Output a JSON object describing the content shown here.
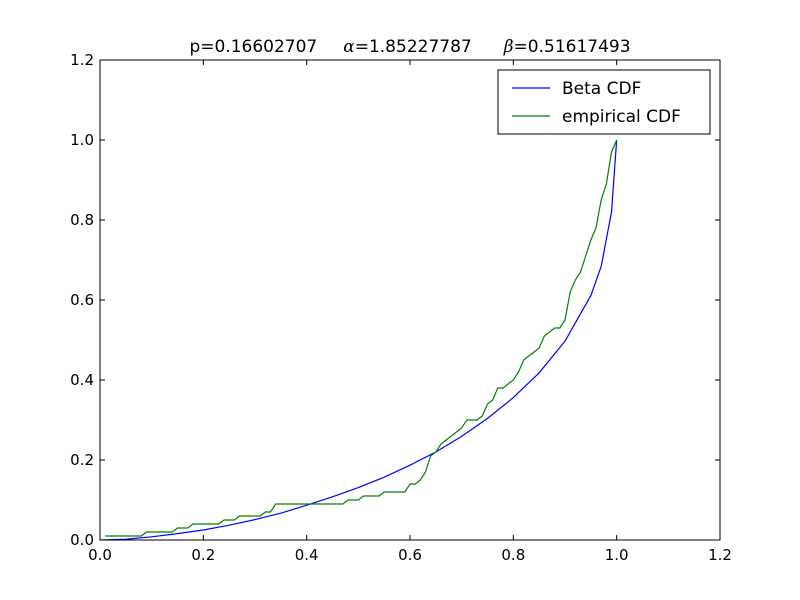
{
  "chart_data": {
    "type": "line",
    "title": {
      "p_label": "p=0.16602707",
      "alpha_symbol": "α",
      "alpha_value": "=1.85227787",
      "beta_symbol": "β",
      "beta_value": "=0.51617493"
    },
    "xlabel": "",
    "ylabel": "",
    "xlim": [
      0.0,
      1.2
    ],
    "ylim": [
      0.0,
      1.2
    ],
    "x_ticks": [
      0.0,
      0.2,
      0.4,
      0.6,
      0.8,
      1.0,
      1.2
    ],
    "x_tick_labels": [
      "0.0",
      "0.2",
      "0.4",
      "0.6",
      "0.8",
      "1.0",
      "1.2"
    ],
    "y_ticks": [
      0.0,
      0.2,
      0.4,
      0.6,
      0.8,
      1.0,
      1.2
    ],
    "y_tick_labels": [
      "0.0",
      "0.2",
      "0.4",
      "0.6",
      "0.8",
      "1.0",
      "1.2"
    ],
    "grid": false,
    "legend_position": "top-right",
    "series": [
      {
        "name": "Beta CDF",
        "color": "#0000ff",
        "x": [
          0.0,
          0.05,
          0.1,
          0.15,
          0.2,
          0.25,
          0.3,
          0.35,
          0.4,
          0.45,
          0.5,
          0.55,
          0.6,
          0.65,
          0.7,
          0.75,
          0.8,
          0.85,
          0.9,
          0.95,
          0.97,
          0.99,
          1.0
        ],
        "y": [
          0.0,
          0.002,
          0.008,
          0.016,
          0.025,
          0.037,
          0.051,
          0.067,
          0.087,
          0.108,
          0.131,
          0.157,
          0.187,
          0.22,
          0.259,
          0.304,
          0.356,
          0.418,
          0.497,
          0.611,
          0.684,
          0.82,
          1.0
        ]
      },
      {
        "name": "empirical CDF",
        "color": "#008000",
        "x": [
          0.01,
          0.08,
          0.09,
          0.14,
          0.15,
          0.17,
          0.18,
          0.23,
          0.24,
          0.26,
          0.27,
          0.31,
          0.32,
          0.33,
          0.34,
          0.47,
          0.48,
          0.5,
          0.51,
          0.54,
          0.55,
          0.59,
          0.6,
          0.61,
          0.62,
          0.63,
          0.64,
          0.65,
          0.66,
          0.67,
          0.68,
          0.69,
          0.7,
          0.71,
          0.72,
          0.73,
          0.74,
          0.75,
          0.76,
          0.77,
          0.78,
          0.79,
          0.8,
          0.81,
          0.82,
          0.83,
          0.84,
          0.85,
          0.86,
          0.87,
          0.88,
          0.89,
          0.9,
          0.91,
          0.92,
          0.93,
          0.94,
          0.95,
          0.96,
          0.97,
          0.98,
          0.99,
          1.0
        ],
        "y": [
          0.01,
          0.01,
          0.02,
          0.02,
          0.03,
          0.03,
          0.04,
          0.04,
          0.05,
          0.05,
          0.06,
          0.06,
          0.07,
          0.07,
          0.09,
          0.09,
          0.1,
          0.1,
          0.11,
          0.11,
          0.12,
          0.12,
          0.14,
          0.14,
          0.15,
          0.17,
          0.21,
          0.22,
          0.24,
          0.25,
          0.26,
          0.27,
          0.28,
          0.3,
          0.3,
          0.3,
          0.31,
          0.34,
          0.35,
          0.38,
          0.38,
          0.39,
          0.4,
          0.42,
          0.45,
          0.46,
          0.47,
          0.48,
          0.51,
          0.52,
          0.53,
          0.53,
          0.55,
          0.62,
          0.65,
          0.67,
          0.71,
          0.75,
          0.78,
          0.85,
          0.89,
          0.97,
          1.0
        ]
      }
    ]
  }
}
